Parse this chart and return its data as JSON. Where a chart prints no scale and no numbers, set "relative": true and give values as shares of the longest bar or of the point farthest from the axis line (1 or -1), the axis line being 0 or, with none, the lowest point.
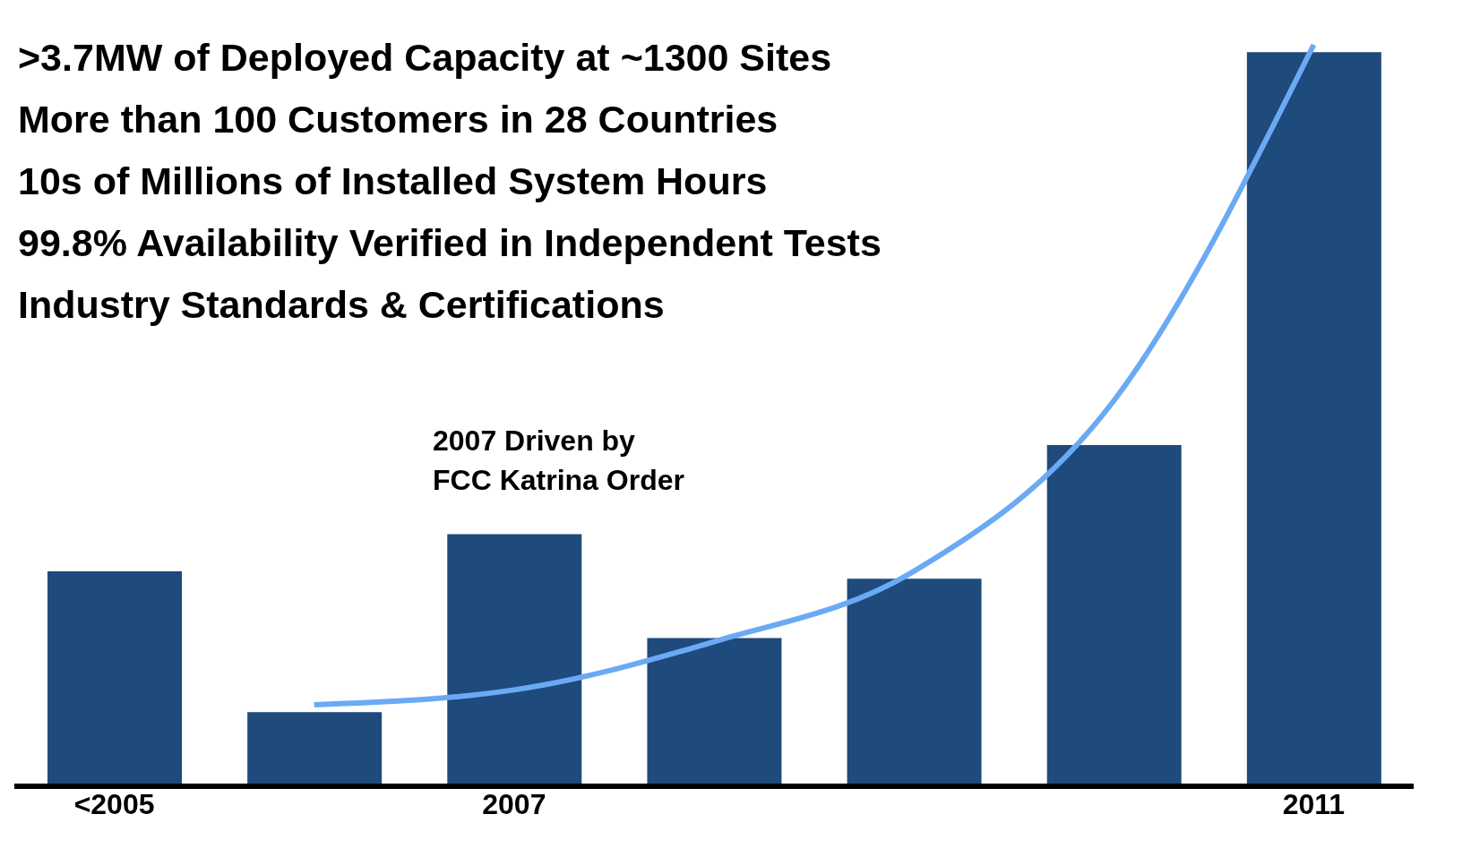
{
  "chart_data": {
    "type": "bar",
    "relative": true,
    "categories": [
      "<2005",
      null,
      "2007",
      null,
      null,
      null,
      "2011"
    ],
    "series": [
      {
        "type": "line",
        "color": "#6aaaf5",
        "values": [
          null,
          0.11,
          0.13,
          0.195,
          0.29,
          0.52,
          1.0
        ]
      },
      {
        "color": "#1f4a7c",
        "values": [
          0.29,
          0.1,
          0.34,
          0.2,
          0.28,
          0.46,
          0.99
        ]
      }
    ],
    "annotations": [
      ">3.7MW of Deployed Capacity at ~1300 Sites",
      "More than 100 Customers in 28 Countries",
      "10s of Millions of Installed System Hours",
      "99.8% Availability Verified in Independent Tests",
      "Industry Standards & Certifications",
      "2007 Driven by\nFCC Katrina Order"
    ]
  }
}
